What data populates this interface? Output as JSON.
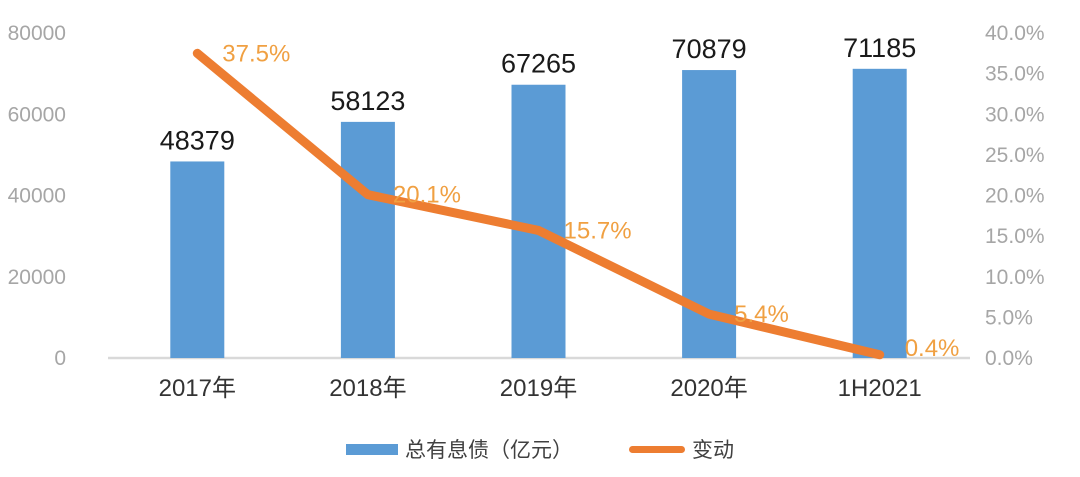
{
  "colors": {
    "bar": "#5B9BD5",
    "line": "#ED7D31",
    "line_label": "#F0A042",
    "bar_label": "#1a1a1a",
    "axis_label": "#A6A6A6",
    "category_label": "#333333",
    "axis_line": "#D9D9D9",
    "legend_text": "#404040",
    "background": "#ffffff"
  },
  "chart_data": {
    "type": "bar+line combo",
    "categories": [
      "2017年",
      "2018年",
      "2019年",
      "2020年",
      "1H2021"
    ],
    "series": [
      {
        "name": "总有息债（亿元）",
        "type": "bar",
        "axis": "left",
        "values": [
          48379,
          58123,
          67265,
          70879,
          71185
        ],
        "labels": [
          "48379",
          "58123",
          "67265",
          "70879",
          "71185"
        ],
        "color": "#5B9BD5"
      },
      {
        "name": "变动",
        "type": "line",
        "axis": "right",
        "values": [
          37.5,
          20.1,
          15.7,
          5.4,
          0.4
        ],
        "labels": [
          "37.5%",
          "20.1%",
          "15.7%",
          "5.4%",
          "0.4%"
        ],
        "color": "#ED7D31"
      }
    ],
    "left_axis": {
      "min": 0,
      "max": 80000,
      "tick_labels": [
        "80000",
        "60000",
        "40000",
        "20000",
        "0"
      ]
    },
    "right_axis": {
      "min": 0,
      "max": 40,
      "tick_labels": [
        "40.0%",
        "35.0%",
        "30.0%",
        "25.0%",
        "20.0%",
        "15.0%",
        "10.0%",
        "5.0%",
        "0.0%"
      ]
    },
    "grid": false,
    "legend_position": "bottom",
    "title": "",
    "xlabel": "",
    "ylabel": ""
  },
  "legend": {
    "items": [
      {
        "label": "总有息债（亿元）",
        "swatch": "bar"
      },
      {
        "label": "变动",
        "swatch": "line"
      }
    ]
  }
}
